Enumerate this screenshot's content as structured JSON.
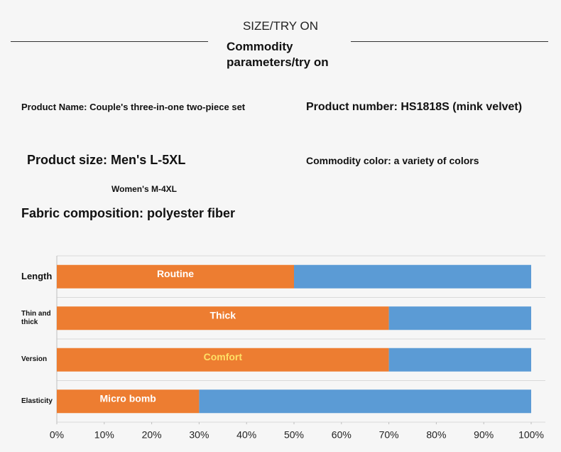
{
  "header": {
    "title": "SIZE/TRY ON",
    "subtitle": "Commodity parameters/try on"
  },
  "fields": {
    "product_name": "Product Name: Couple's three-in-one two-piece set",
    "product_number": "Product number: HS1818S (mink velvet)",
    "product_size": "Product size: Men's L-5XL",
    "commodity_color": "Commodity color: a variety of colors",
    "women_size": "Women's M-4XL",
    "fabric": "Fabric composition: polyester fiber"
  },
  "chart_data": {
    "type": "stacked_barh",
    "categories": [
      "Length",
      "Thin and thick",
      "Version",
      "Elasticity"
    ],
    "series": [
      {
        "color": "#ed7d31",
        "values": [
          50,
          70,
          70,
          30
        ],
        "labels": [
          "Routine",
          "Thick",
          "Comfort",
          "Micro bomb"
        ],
        "label_colors": [
          "#ffffff",
          "#ffffff",
          "#ffe066",
          "#ffffff"
        ]
      },
      {
        "color": "#5b9bd5",
        "values": [
          50,
          30,
          30,
          70
        ]
      }
    ],
    "xlim": [
      0,
      100
    ],
    "xticks": [
      {
        "value": 0,
        "label": "0%"
      },
      {
        "value": 10,
        "label": "10%"
      },
      {
        "value": 20,
        "label": "20%"
      },
      {
        "value": 30,
        "label": "30%"
      },
      {
        "value": 40,
        "label": "40%"
      },
      {
        "value": 50,
        "label": "50%"
      },
      {
        "value": 60,
        "label": "60%"
      },
      {
        "value": 70,
        "label": "70%"
      },
      {
        "value": 80,
        "label": "80%"
      },
      {
        "value": 90,
        "label": "90%"
      },
      {
        "value": 100,
        "label": "100%"
      }
    ]
  }
}
